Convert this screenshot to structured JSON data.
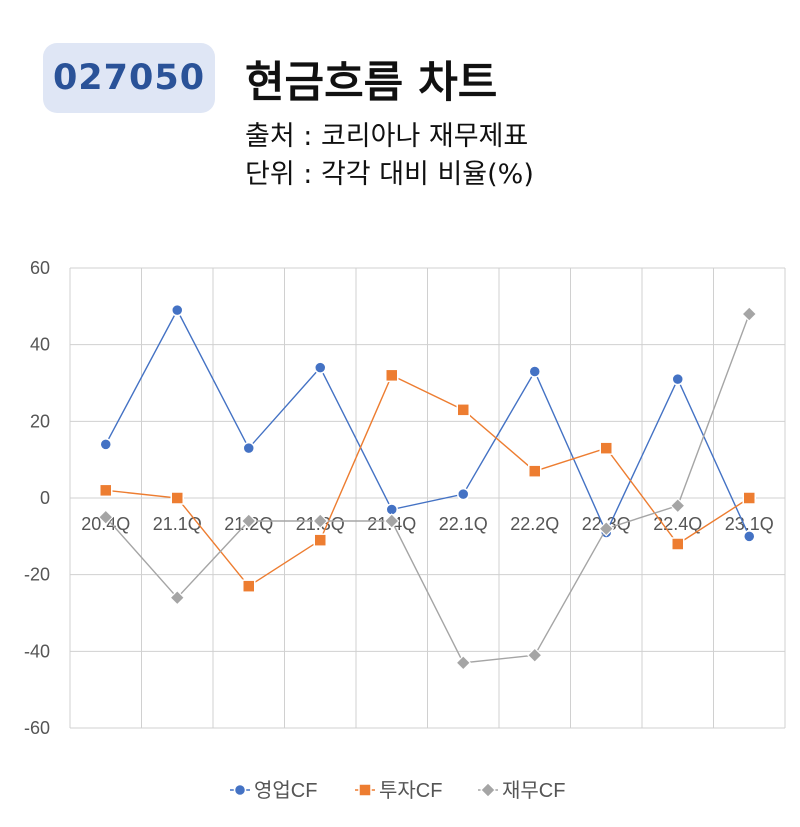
{
  "header": {
    "code": "027050",
    "title": "현금흐름 차트",
    "source": "출처 : 코리아나 재무제표",
    "unit": "단위 : 각각 대비 비율(%)"
  },
  "chart_data": {
    "type": "line",
    "categories": [
      "20.4Q",
      "21.1Q",
      "21.2Q",
      "21.3Q",
      "21.4Q",
      "22.1Q",
      "22.2Q",
      "22.3Q",
      "22.4Q",
      "23.1Q"
    ],
    "ylim": [
      -60,
      60
    ],
    "yticks": [
      60,
      40,
      20,
      0,
      -20,
      -40,
      -60
    ],
    "grid": true,
    "legend_position": "bottom",
    "series": [
      {
        "name": "영업CF",
        "marker": "circle",
        "color": "#4472c4",
        "values": [
          14,
          49,
          13,
          34,
          -3,
          1,
          33,
          -9,
          31,
          -10
        ]
      },
      {
        "name": "투자CF",
        "marker": "square",
        "color": "#ed7d31",
        "values": [
          2,
          0,
          -23,
          -11,
          32,
          23,
          7,
          13,
          -12,
          0
        ]
      },
      {
        "name": "재무CF",
        "marker": "diamond",
        "color": "#a5a5a5",
        "values": [
          -5,
          -26,
          -6,
          -6,
          -6,
          -43,
          -41,
          -8,
          -2,
          48
        ]
      }
    ]
  }
}
